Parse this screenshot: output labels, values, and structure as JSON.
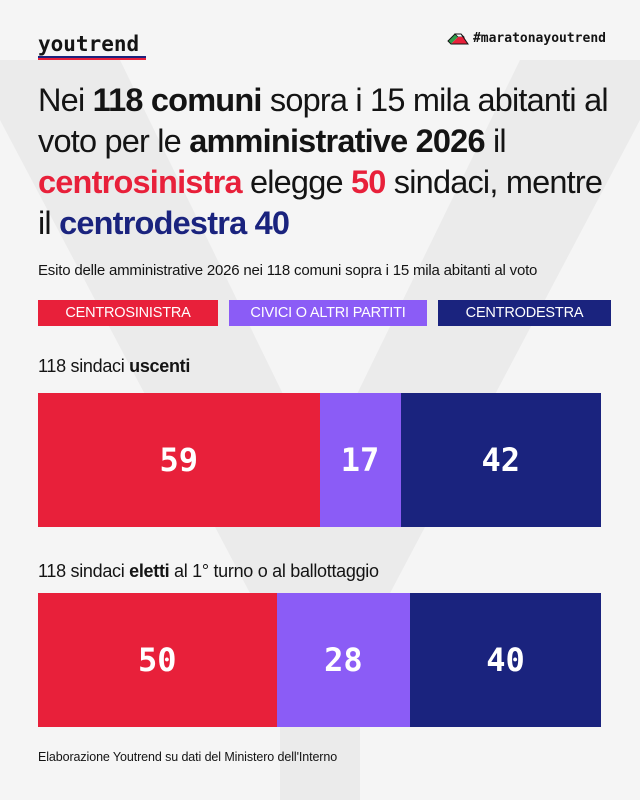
{
  "brand": {
    "logo": "youtrend",
    "hashtag": "#maratonayoutrend"
  },
  "colors": {
    "centrosinistra": "#e8203a",
    "civici": "#8b5cf6",
    "centrodestra": "#1a237e"
  },
  "headline": {
    "p1": "Nei ",
    "b1": "118 comuni",
    "p2": " sopra i 15 mila abitanti al voto per le ",
    "b2": "amministrative 2026",
    "p3": " il ",
    "r1": "centrosinistra",
    "p4": " elegge ",
    "r2": "50",
    "p5": " sindaci, mentre il ",
    "bl1": "centrodestra 40"
  },
  "subtitle": "Esito delle amministrative 2026 nei 118 comuni sopra i 15 mila abitanti al voto",
  "legend": [
    "CENTROSINISTRA",
    "CIVICI O ALTRI PARTITI",
    "CENTRODESTRA"
  ],
  "sections": [
    {
      "prefix": "118 sindaci ",
      "bold": "uscenti",
      "suffix": ""
    },
    {
      "prefix": "118 sindaci ",
      "bold": "eletti",
      "suffix": " al 1° turno o al ballottaggio"
    }
  ],
  "chart_data": {
    "type": "bar",
    "stacked": true,
    "orientation": "horizontal",
    "categories": [
      "118 sindaci uscenti",
      "118 sindaci eletti al 1° turno o al ballottaggio"
    ],
    "series": [
      {
        "name": "CENTROSINISTRA",
        "values": [
          59,
          50
        ]
      },
      {
        "name": "CIVICI O ALTRI PARTITI",
        "values": [
          17,
          28
        ]
      },
      {
        "name": "CENTRODESTRA",
        "values": [
          42,
          40
        ]
      }
    ],
    "labels": [
      [
        "59",
        "17",
        "42"
      ],
      [
        "50",
        "28",
        "40"
      ]
    ]
  },
  "footer": "Elaborazione Youtrend su dati del Ministero dell'Interno"
}
